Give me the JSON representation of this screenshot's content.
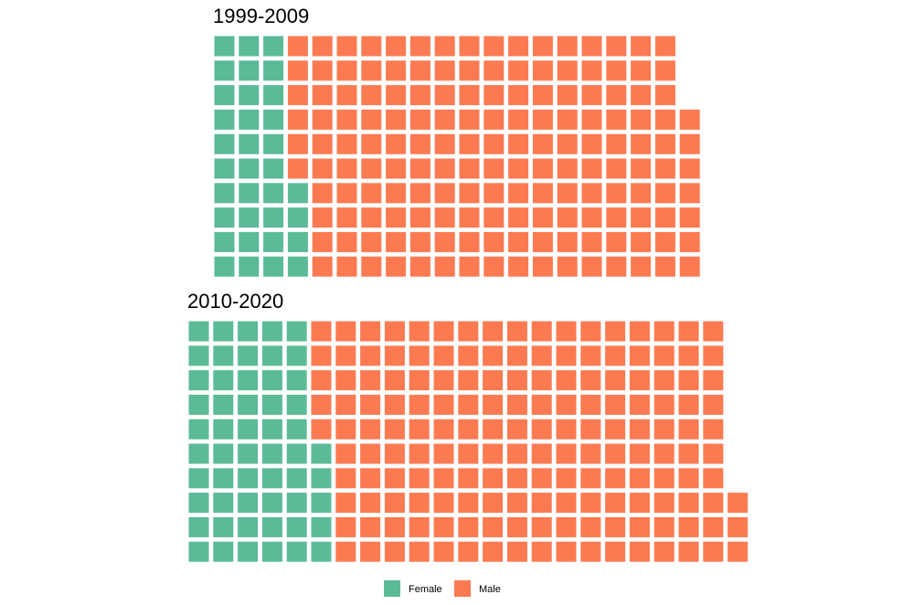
{
  "chart_data": {
    "type": "waffle",
    "unit_description": "",
    "colors": {
      "Female": "#5bbb97",
      "Male": "#fc7a52"
    },
    "legend": {
      "position": "bottom",
      "entries": [
        "Female",
        "Male"
      ]
    },
    "panels": [
      {
        "title": "1999-2009",
        "rows": 10,
        "fill_order": "column-wise, bottom to top",
        "series": [
          {
            "name": "Female",
            "value": 34
          },
          {
            "name": "Male",
            "value": 163
          }
        ]
      },
      {
        "title": "2010-2020",
        "rows": 10,
        "fill_order": "column-wise, bottom to top",
        "series": [
          {
            "name": "Female",
            "value": 55
          },
          {
            "name": "Male",
            "value": 168
          }
        ]
      }
    ]
  }
}
